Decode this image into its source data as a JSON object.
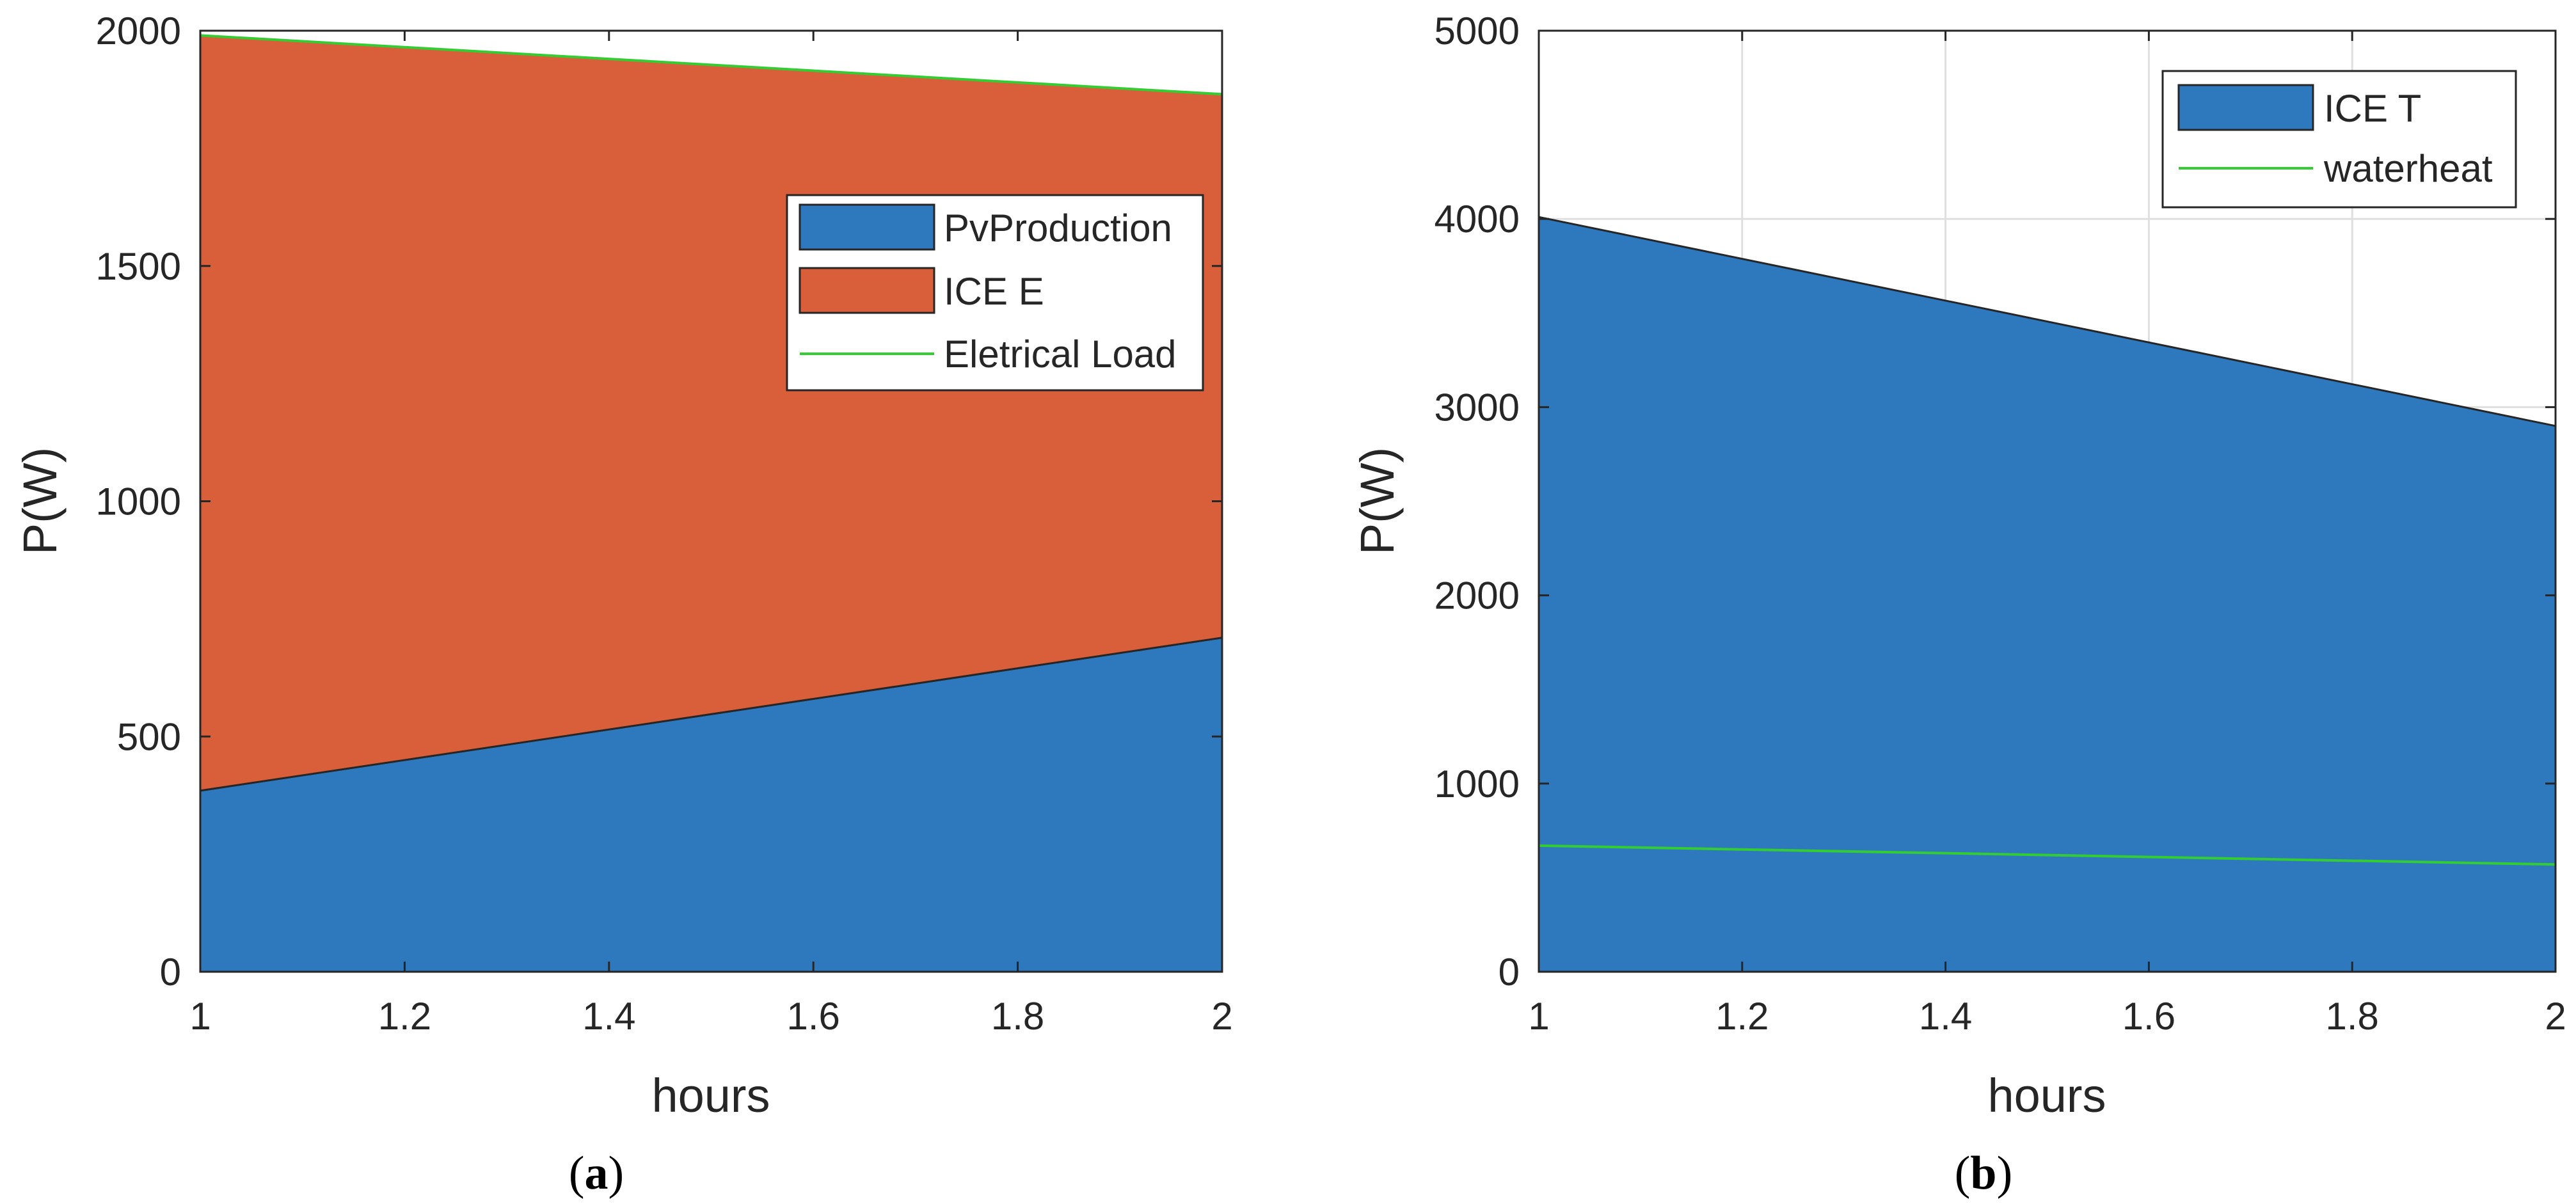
{
  "panels": [
    {
      "label_open": "(",
      "label_letter": "a",
      "label_close": ")"
    },
    {
      "label_open": "(",
      "label_letter": "b",
      "label_close": ")"
    }
  ],
  "chart_data": [
    {
      "type": "area",
      "xlabel": "hours",
      "ylabel": "P(W)",
      "xlim": [
        1,
        2
      ],
      "ylim": [
        0,
        2000
      ],
      "xticks": [
        1,
        1.2,
        1.4,
        1.6,
        1.8,
        2
      ],
      "xtick_labels": [
        "1",
        "1.2",
        "1.4",
        "1.6",
        "1.8",
        "2"
      ],
      "yticks": [
        0,
        500,
        1000,
        1500,
        2000
      ],
      "ytick_labels": [
        "0",
        "500",
        "1000",
        "1500",
        "2000"
      ],
      "grid": false,
      "legend_position": "upper-right",
      "x": [
        1,
        2
      ],
      "series": [
        {
          "name": "PvProduction",
          "kind": "stacked-area",
          "values": [
            385,
            710
          ],
          "color": "#2E78BE"
        },
        {
          "name": "ICE E",
          "kind": "stacked-area",
          "values": [
            1605,
            1155
          ],
          "color": "#D95F3A"
        },
        {
          "name": "Eletrical Load",
          "kind": "line",
          "values": [
            1990,
            1865
          ],
          "color": "#33CC33"
        }
      ]
    },
    {
      "type": "area",
      "xlabel": "hours",
      "ylabel": "P(W)",
      "xlim": [
        1,
        2
      ],
      "ylim": [
        0,
        5000
      ],
      "xticks": [
        1,
        1.2,
        1.4,
        1.6,
        1.8,
        2
      ],
      "xtick_labels": [
        "1",
        "1.2",
        "1.4",
        "1.6",
        "1.8",
        "2"
      ],
      "yticks": [
        0,
        1000,
        2000,
        3000,
        4000,
        5000
      ],
      "ytick_labels": [
        "0",
        "1000",
        "2000",
        "3000",
        "4000",
        "5000"
      ],
      "grid": true,
      "legend_position": "top-right",
      "x": [
        1,
        2
      ],
      "series": [
        {
          "name": "ICE T",
          "kind": "stacked-area",
          "values": [
            4010,
            2900
          ],
          "color": "#2E78BE"
        },
        {
          "name": "waterheat",
          "kind": "line",
          "values": [
            670,
            570
          ],
          "color": "#33CC33"
        }
      ]
    }
  ]
}
